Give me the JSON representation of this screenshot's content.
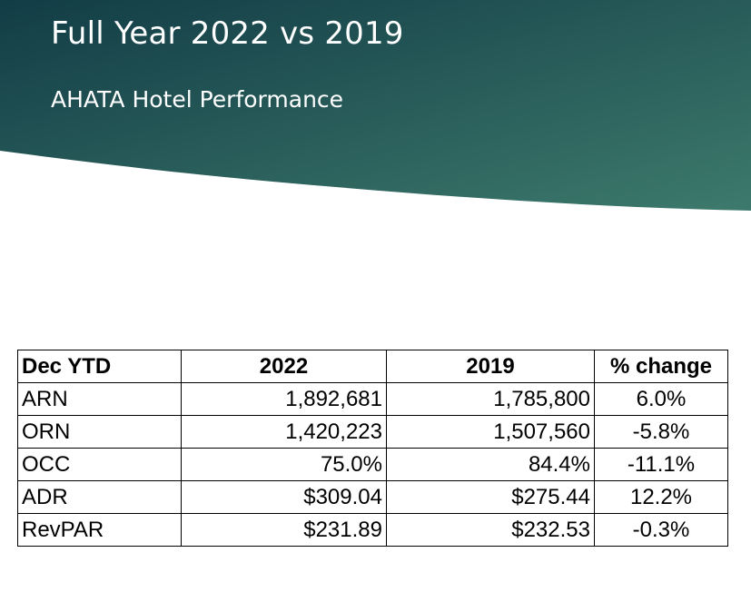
{
  "slide": {
    "title": "Full Year 2022 vs 2019",
    "subtitle": "AHATA Hotel Performance"
  },
  "theme": {
    "header_gradient_start": "#123c46",
    "header_gradient_end": "#3d7a6c",
    "text_on_header": "#ffffff"
  },
  "table": {
    "headers": [
      "Dec YTD",
      "2022",
      "2019",
      "% change"
    ],
    "rows": [
      [
        "ARN",
        "1,892,681",
        "1,785,800",
        "6.0%"
      ],
      [
        "ORN",
        "1,420,223",
        "1,507,560",
        "-5.8%"
      ],
      [
        "OCC",
        "75.0%",
        "84.4%",
        "-11.1%"
      ],
      [
        "ADR",
        "$309.04",
        "$275.44",
        "12.2%"
      ],
      [
        "RevPAR",
        "$231.89",
        "$232.53",
        "-0.3%"
      ]
    ]
  }
}
